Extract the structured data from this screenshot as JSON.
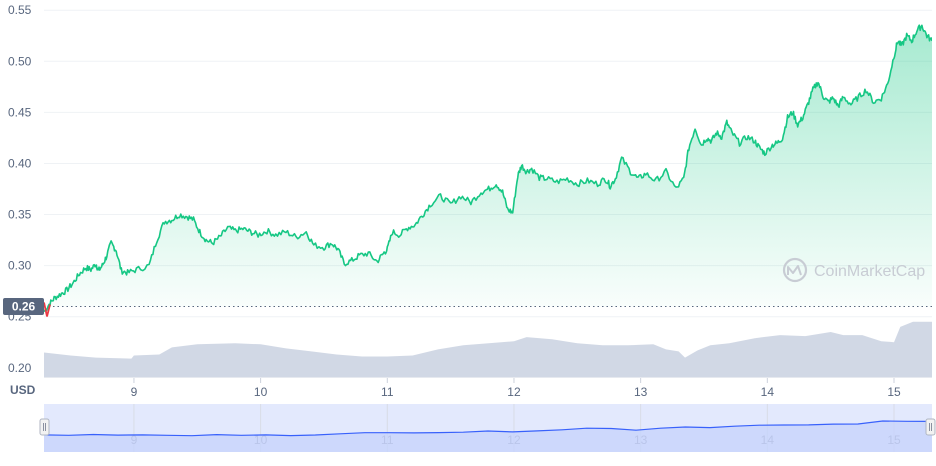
{
  "chart_data": {
    "type": "area",
    "y_axis_label": "USD",
    "ylim": [
      0.19,
      0.56
    ],
    "y_ticks": [
      "0.20",
      "0.25",
      "0.30",
      "0.35",
      "0.40",
      "0.45",
      "0.50",
      "0.55"
    ],
    "x_ticks": [
      "9",
      "10",
      "11",
      "12",
      "13",
      "14",
      "15"
    ],
    "x_tick_values": [
      9,
      10,
      11,
      12,
      13,
      14,
      15
    ],
    "xlim": [
      8.29,
      15.3
    ],
    "current_price_label": "0.26",
    "current_price": 0.26,
    "grid": true,
    "series": [
      {
        "kind": "price",
        "color": "#16c784",
        "x": [
          8.29,
          8.33,
          8.37,
          8.42,
          8.47,
          8.52,
          8.57,
          8.62,
          8.66,
          8.7,
          8.72,
          8.75,
          8.78,
          8.82,
          8.86,
          8.9,
          8.95,
          9.02,
          9.12,
          9.18,
          9.24,
          9.3,
          9.36,
          9.42,
          9.47,
          9.52,
          9.57,
          9.62,
          9.68,
          9.74,
          9.8,
          9.86,
          9.92,
          9.98,
          10.05,
          10.12,
          10.2,
          10.28,
          10.36,
          10.42,
          10.5,
          10.56,
          10.61,
          10.66,
          10.72,
          10.78,
          10.85,
          10.92,
          10.97,
          11.0,
          11.04,
          11.1,
          11.16,
          11.22,
          11.28,
          11.34,
          11.42,
          11.5,
          11.58,
          11.66,
          11.74,
          11.8,
          11.86,
          11.91,
          11.95,
          11.99,
          12.03,
          12.06,
          12.1,
          12.14,
          12.2,
          12.26,
          12.34,
          12.42,
          12.5,
          12.58,
          12.66,
          12.72,
          12.76,
          12.8,
          12.85,
          12.92,
          12.98,
          13.04,
          13.12,
          13.2,
          13.28,
          13.34,
          13.38,
          13.43,
          13.48,
          13.52,
          13.56,
          13.6,
          13.64,
          13.68,
          13.72,
          13.78,
          13.84,
          13.9,
          13.94,
          13.98,
          14.04,
          14.08,
          14.12,
          14.16,
          14.2,
          14.24,
          14.28,
          14.32,
          14.36,
          14.4,
          14.44,
          14.48,
          14.52,
          14.56,
          14.6,
          14.66,
          14.72,
          14.78,
          14.84,
          14.9,
          14.95,
          15.0,
          15.03,
          15.06,
          15.1,
          15.14,
          15.18,
          15.22,
          15.26,
          15.3
        ],
        "values": [
          0.255,
          0.262,
          0.268,
          0.272,
          0.276,
          0.283,
          0.292,
          0.298,
          0.296,
          0.302,
          0.295,
          0.3,
          0.308,
          0.322,
          0.315,
          0.295,
          0.293,
          0.296,
          0.3,
          0.325,
          0.343,
          0.345,
          0.35,
          0.348,
          0.345,
          0.333,
          0.325,
          0.322,
          0.328,
          0.337,
          0.334,
          0.336,
          0.333,
          0.33,
          0.334,
          0.33,
          0.333,
          0.328,
          0.333,
          0.32,
          0.318,
          0.322,
          0.316,
          0.302,
          0.305,
          0.31,
          0.312,
          0.304,
          0.312,
          0.316,
          0.333,
          0.33,
          0.337,
          0.34,
          0.35,
          0.36,
          0.368,
          0.36,
          0.368,
          0.362,
          0.372,
          0.375,
          0.38,
          0.372,
          0.355,
          0.352,
          0.388,
          0.398,
          0.392,
          0.395,
          0.386,
          0.385,
          0.382,
          0.385,
          0.38,
          0.383,
          0.38,
          0.385,
          0.378,
          0.385,
          0.405,
          0.392,
          0.385,
          0.39,
          0.383,
          0.392,
          0.375,
          0.385,
          0.415,
          0.435,
          0.418,
          0.425,
          0.422,
          0.43,
          0.426,
          0.44,
          0.43,
          0.42,
          0.426,
          0.422,
          0.415,
          0.41,
          0.418,
          0.42,
          0.425,
          0.445,
          0.45,
          0.438,
          0.445,
          0.458,
          0.472,
          0.48,
          0.466,
          0.46,
          0.464,
          0.456,
          0.465,
          0.458,
          0.465,
          0.472,
          0.46,
          0.464,
          0.478,
          0.505,
          0.52,
          0.515,
          0.525,
          0.52,
          0.53,
          0.535,
          0.525,
          0.52
        ]
      },
      {
        "kind": "volume",
        "color": "#cfd6e4",
        "x": [
          8.29,
          8.5,
          8.7,
          8.98,
          9.0,
          9.2,
          9.3,
          9.5,
          9.8,
          10.0,
          10.2,
          10.4,
          10.6,
          10.8,
          11.0,
          11.2,
          11.4,
          11.6,
          11.8,
          12.0,
          12.1,
          12.3,
          12.5,
          12.7,
          12.9,
          13.1,
          13.2,
          13.3,
          13.35,
          13.45,
          13.55,
          13.7,
          13.9,
          14.1,
          14.3,
          14.5,
          14.6,
          14.75,
          14.9,
          15.0,
          15.05,
          15.15,
          15.3
        ],
        "values": [
          0.215,
          0.212,
          0.21,
          0.209,
          0.212,
          0.213,
          0.22,
          0.223,
          0.224,
          0.223,
          0.219,
          0.216,
          0.213,
          0.211,
          0.211,
          0.212,
          0.218,
          0.222,
          0.224,
          0.226,
          0.23,
          0.228,
          0.224,
          0.222,
          0.222,
          0.223,
          0.218,
          0.216,
          0.21,
          0.217,
          0.222,
          0.224,
          0.229,
          0.232,
          0.231,
          0.235,
          0.232,
          0.232,
          0.226,
          0.225,
          0.24,
          0.245,
          0.245
        ]
      }
    ],
    "navigator": {
      "color": "#3861fb",
      "values": [
        0.42,
        0.41,
        0.41,
        0.42,
        0.4,
        0.39,
        0.4,
        0.41,
        0.42,
        0.42,
        0.42,
        0.44,
        0.46,
        0.48,
        0.48,
        0.52,
        0.53,
        0.54,
        0.56,
        0.55,
        0.57,
        0.6,
        0.66,
        0.66,
        0.62,
        0.68,
        0.7,
        0.71,
        0.74,
        0.76,
        0.78,
        0.82,
        0.83,
        0.85,
        0.95,
        0.96,
        0.93
      ]
    },
    "watermark": "CoinMarketCap"
  }
}
